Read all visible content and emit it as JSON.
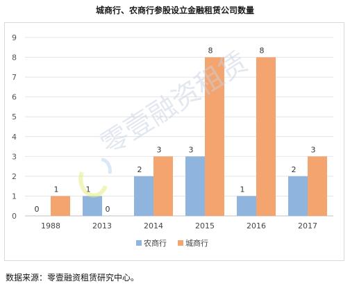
{
  "title": "城商行、农商行参股设立金融租赁公司数量",
  "watermark": "零壹融资租赁",
  "source": "数据来源：零壹融资租赁研究中心。",
  "chart_data": {
    "type": "bar",
    "title": "城商行、农商行参股设立金融租赁公司数量",
    "categories": [
      "1988",
      "2013",
      "2014",
      "2015",
      "2016",
      "2017"
    ],
    "series": [
      {
        "name": "农商行",
        "values": [
          0,
          1,
          2,
          3,
          1,
          2
        ],
        "color": "#8fb4de"
      },
      {
        "name": "城商行",
        "values": [
          1,
          0,
          3,
          8,
          8,
          3
        ],
        "color": "#f4a46e"
      }
    ],
    "ylim": [
      0,
      9
    ],
    "yticks": [
      0,
      1,
      2,
      3,
      4,
      5,
      6,
      7,
      8,
      9
    ],
    "grid": "horizontal",
    "legend": "bottom",
    "data_labels": true
  }
}
